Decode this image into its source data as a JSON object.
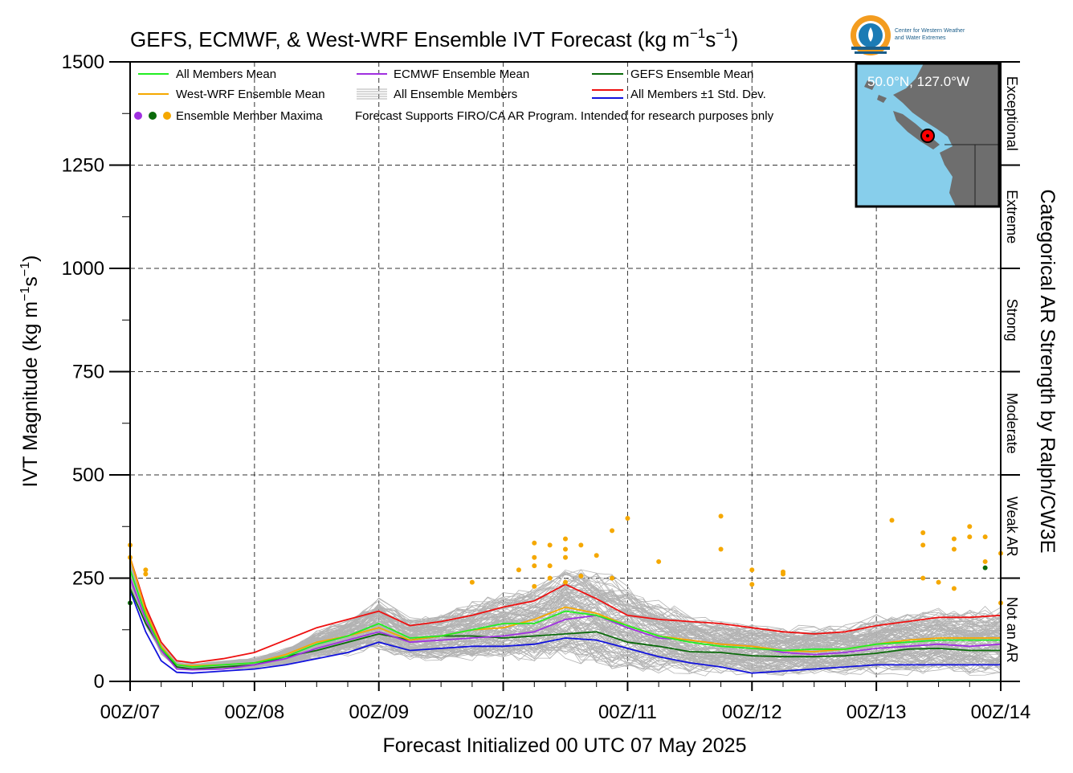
{
  "chart_data": {
    "type": "line",
    "title_main": "GEFS, ECMWF, & West-WRF Ensemble IVT Forecast (kg m",
    "title_exp1": "−1",
    "title_mid": "s",
    "title_exp2": "−1",
    "title_end": ")",
    "xlabel": "Forecast Initialized 00 UTC 07 May 2025",
    "ylabel_main": "IVT Magnitude (kg m",
    "ylabel_exp1": "−1",
    "ylabel_mid": "s",
    "ylabel_exp2": "−1",
    "ylabel_end": ")",
    "right_label": "Categorical AR Strength by Ralph/CW3E",
    "ylim": [
      0,
      1500
    ],
    "y_ticks": [
      0,
      250,
      500,
      750,
      1000,
      1250,
      1500
    ],
    "y_tick_labels": [
      "0",
      "250",
      "500",
      "750",
      "1000",
      "1250",
      "1500"
    ],
    "x_range_hours": [
      0,
      168
    ],
    "x_ticks_hours": [
      0,
      24,
      48,
      72,
      96,
      120,
      144,
      168
    ],
    "x_tick_labels": [
      "00Z/07",
      "00Z/08",
      "00Z/09",
      "00Z/10",
      "00Z/11",
      "00Z/12",
      "00Z/13",
      "00Z/14"
    ],
    "grid": true,
    "categories": [
      {
        "name": "Not an AR",
        "range": [
          0,
          250
        ]
      },
      {
        "name": "Weak AR",
        "range": [
          250,
          500
        ]
      },
      {
        "name": "Moderate",
        "range": [
          500,
          750
        ]
      },
      {
        "name": "Strong",
        "range": [
          750,
          1000
        ]
      },
      {
        "name": "Extreme",
        "range": [
          1000,
          1250
        ]
      },
      {
        "name": "Exceptional",
        "range": [
          1250,
          1500
        ]
      }
    ],
    "legend": {
      "items": [
        {
          "label": "All Members Mean",
          "color": "#22ee22"
        },
        {
          "label": "ECMWF Ensemble Mean",
          "color": "#a030e0"
        },
        {
          "label": "GEFS Ensemble Mean",
          "color": "#0a6a0a"
        },
        {
          "label": "West-WRF Ensemble Mean",
          "color": "#f5a800"
        },
        {
          "label": "All Ensemble Members",
          "color": "#b0b0b0"
        },
        {
          "label": "All Members ±1 Std. Dev.",
          "color": "#ee1111",
          "color2": "#1111dd"
        },
        {
          "label": "Ensemble Member Maxima",
          "colors": [
            "#a030e0",
            "#0a6a0a",
            "#f5a800"
          ]
        }
      ],
      "note": "Forecast Supports FIRO/CA AR Program. Intended for research purposes only",
      "placement": "top-left"
    },
    "series": [
      {
        "name": "All Members Mean",
        "color": "#22ee22",
        "x": [
          0,
          3,
          6,
          9,
          12,
          18,
          24,
          30,
          36,
          42,
          48,
          54,
          60,
          66,
          72,
          78,
          84,
          90,
          96,
          102,
          108,
          114,
          120,
          126,
          132,
          138,
          144,
          150,
          156,
          162,
          168
        ],
        "y": [
          270,
          160,
          80,
          40,
          35,
          40,
          45,
          60,
          90,
          110,
          140,
          105,
          110,
          125,
          140,
          140,
          170,
          160,
          135,
          110,
          95,
          85,
          80,
          75,
          78,
          78,
          90,
          95,
          100,
          100,
          100
        ]
      },
      {
        "name": "ECMWF Ensemble Mean",
        "color": "#a030e0",
        "x": [
          0,
          3,
          6,
          9,
          12,
          18,
          24,
          30,
          36,
          42,
          48,
          54,
          60,
          66,
          72,
          78,
          84,
          90,
          96,
          102,
          108,
          114,
          120,
          126,
          132,
          138,
          144,
          150,
          156,
          162,
          168
        ],
        "y": [
          250,
          150,
          75,
          30,
          28,
          30,
          40,
          55,
          80,
          100,
          120,
          95,
          100,
          105,
          110,
          120,
          150,
          160,
          130,
          105,
          100,
          90,
          85,
          70,
          65,
          70,
          80,
          85,
          90,
          85,
          90
        ]
      },
      {
        "name": "GEFS Ensemble Mean",
        "color": "#0a6a0a",
        "x": [
          0,
          3,
          6,
          9,
          12,
          18,
          24,
          30,
          36,
          42,
          48,
          54,
          60,
          66,
          72,
          78,
          84,
          90,
          96,
          102,
          108,
          114,
          120,
          126,
          132,
          138,
          144,
          150,
          156,
          162,
          168
        ],
        "y": [
          225,
          140,
          80,
          35,
          30,
          35,
          40,
          60,
          75,
          95,
          115,
          100,
          110,
          110,
          105,
          110,
          115,
          120,
          95,
          85,
          72,
          70,
          62,
          60,
          60,
          62,
          68,
          78,
          80,
          75,
          75
        ]
      },
      {
        "name": "West-WRF Ensemble Mean",
        "color": "#f5a800",
        "x": [
          0,
          3,
          6,
          9,
          12,
          18,
          24,
          30,
          36,
          42,
          48,
          54,
          60,
          66,
          72,
          78,
          84,
          90,
          96,
          102,
          108,
          114,
          120,
          126,
          132,
          138,
          144,
          150,
          156,
          162,
          168
        ],
        "y": [
          300,
          170,
          85,
          40,
          38,
          40,
          45,
          65,
          95,
          110,
          130,
          100,
          110,
          125,
          130,
          150,
          180,
          165,
          135,
          110,
          100,
          90,
          85,
          75,
          72,
          78,
          90,
          100,
          105,
          105,
          105
        ]
      },
      {
        "name": "All Members ±1 Std. Dev.",
        "color": "#ee1111",
        "x": [
          0,
          3,
          6,
          9,
          12,
          18,
          24,
          30,
          36,
          42,
          48,
          54,
          60,
          66,
          72,
          78,
          84,
          90,
          96,
          102,
          108,
          114,
          120,
          126,
          132,
          138,
          144,
          150,
          156,
          162,
          168
        ],
        "y": [
          300,
          180,
          95,
          50,
          45,
          55,
          70,
          100,
          130,
          150,
          170,
          135,
          145,
          160,
          180,
          195,
          235,
          200,
          160,
          150,
          145,
          140,
          130,
          120,
          115,
          120,
          135,
          145,
          155,
          155,
          160
        ]
      },
      {
        "name": "All Members ±1 Std. Dev. (lower)",
        "color": "#1111dd",
        "x": [
          0,
          3,
          6,
          9,
          12,
          18,
          24,
          30,
          36,
          42,
          48,
          54,
          60,
          66,
          72,
          78,
          84,
          90,
          96,
          102,
          108,
          114,
          120,
          126,
          132,
          138,
          144,
          150,
          156,
          162,
          168
        ],
        "y": [
          220,
          120,
          50,
          22,
          20,
          25,
          30,
          40,
          55,
          70,
          95,
          75,
          80,
          85,
          85,
          90,
          105,
          100,
          80,
          60,
          45,
          35,
          20,
          25,
          30,
          35,
          40,
          40,
          40,
          40,
          40
        ]
      }
    ],
    "maxima_points": [
      {
        "x": 0,
        "y": 190,
        "color": "#0a6a0a"
      },
      {
        "x": 0,
        "y": 330,
        "color": "#f5a800"
      },
      {
        "x": 0,
        "y": 300,
        "color": "#f5a800"
      },
      {
        "x": 3,
        "y": 270,
        "color": "#f5a800"
      },
      {
        "x": 3,
        "y": 260,
        "color": "#f5a800"
      },
      {
        "x": 66,
        "y": 240,
        "color": "#f5a800"
      },
      {
        "x": 75,
        "y": 270,
        "color": "#f5a800"
      },
      {
        "x": 78,
        "y": 335,
        "color": "#f5a800"
      },
      {
        "x": 78,
        "y": 300,
        "color": "#f5a800"
      },
      {
        "x": 78,
        "y": 280,
        "color": "#f5a800"
      },
      {
        "x": 78,
        "y": 230,
        "color": "#f5a800"
      },
      {
        "x": 81,
        "y": 330,
        "color": "#f5a800"
      },
      {
        "x": 81,
        "y": 280,
        "color": "#f5a800"
      },
      {
        "x": 81,
        "y": 250,
        "color": "#f5a800"
      },
      {
        "x": 84,
        "y": 345,
        "color": "#f5a800"
      },
      {
        "x": 84,
        "y": 320,
        "color": "#f5a800"
      },
      {
        "x": 84,
        "y": 300,
        "color": "#f5a800"
      },
      {
        "x": 84,
        "y": 240,
        "color": "#f5a800"
      },
      {
        "x": 87,
        "y": 330,
        "color": "#f5a800"
      },
      {
        "x": 87,
        "y": 255,
        "color": "#f5a800"
      },
      {
        "x": 90,
        "y": 305,
        "color": "#f5a800"
      },
      {
        "x": 93,
        "y": 365,
        "color": "#f5a800"
      },
      {
        "x": 93,
        "y": 250,
        "color": "#f5a800"
      },
      {
        "x": 96,
        "y": 395,
        "color": "#f5a800"
      },
      {
        "x": 102,
        "y": 290,
        "color": "#f5a800"
      },
      {
        "x": 114,
        "y": 400,
        "color": "#f5a800"
      },
      {
        "x": 114,
        "y": 320,
        "color": "#f5a800"
      },
      {
        "x": 120,
        "y": 270,
        "color": "#f5a800"
      },
      {
        "x": 120,
        "y": 235,
        "color": "#f5a800"
      },
      {
        "x": 126,
        "y": 265,
        "color": "#f5a800"
      },
      {
        "x": 126,
        "y": 260,
        "color": "#f5a800"
      },
      {
        "x": 147,
        "y": 390,
        "color": "#f5a800"
      },
      {
        "x": 153,
        "y": 360,
        "color": "#f5a800"
      },
      {
        "x": 153,
        "y": 330,
        "color": "#f5a800"
      },
      {
        "x": 153,
        "y": 250,
        "color": "#f5a800"
      },
      {
        "x": 156,
        "y": 240,
        "color": "#f5a800"
      },
      {
        "x": 159,
        "y": 345,
        "color": "#f5a800"
      },
      {
        "x": 159,
        "y": 320,
        "color": "#f5a800"
      },
      {
        "x": 159,
        "y": 225,
        "color": "#f5a800"
      },
      {
        "x": 162,
        "y": 375,
        "color": "#f5a800"
      },
      {
        "x": 162,
        "y": 350,
        "color": "#f5a800"
      },
      {
        "x": 165,
        "y": 350,
        "color": "#f5a800"
      },
      {
        "x": 165,
        "y": 290,
        "color": "#f5a800"
      },
      {
        "x": 165,
        "y": 275,
        "color": "#0a6a0a"
      },
      {
        "x": 168,
        "y": 310,
        "color": "#f5a800"
      },
      {
        "x": 168,
        "y": 190,
        "color": "#f5a800"
      }
    ],
    "ensemble_member_count": 120
  },
  "inset_map": {
    "location_label": "50.0°N, 127.0°W",
    "marker_color": "#ff0000",
    "ocean_color": "#87ceeb",
    "land_color": "#6e6e6e"
  },
  "logo": {
    "line1": "Center for Western Weather",
    "line2": "and Water Extremes",
    "colors": [
      "#f39c1f",
      "#1b7bb5",
      "#1b5e8a"
    ]
  }
}
